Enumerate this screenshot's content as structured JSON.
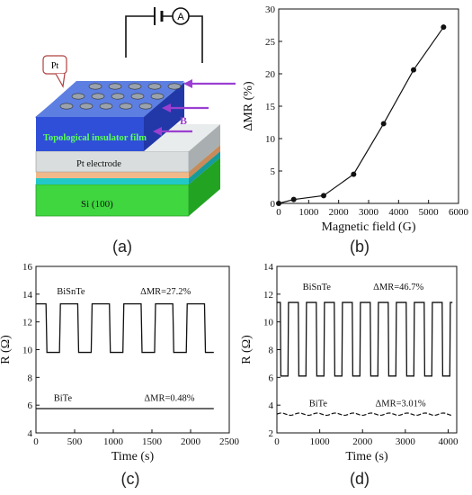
{
  "panels": {
    "a": {
      "label": "(a)",
      "texts": {
        "pt": "Pt",
        "b_field": "B",
        "film": "Topological insulator film",
        "electrode": "Pt electrode",
        "substrate": "Si (100)",
        "ammeter": "A"
      },
      "colors": {
        "film_top": "#6e8fe6",
        "film_front": "#2f4fd8",
        "film_side": "#2238a8",
        "arrow": "#9b3fd1",
        "electrode": "#d9dddd",
        "substrate": "#3fd63f"
      }
    },
    "b": {
      "label": "(b)"
    },
    "c": {
      "label": "(c)"
    },
    "d": {
      "label": "(d)"
    }
  },
  "chart_data": [
    {
      "id": "b",
      "type": "line",
      "xlabel": "Magnetic field (G)",
      "ylabel": "ΔMR (%)",
      "xlim": [
        0,
        6000
      ],
      "ylim": [
        0,
        30
      ],
      "xticks": [
        0,
        1000,
        2000,
        3000,
        4000,
        5000,
        6000
      ],
      "yticks": [
        0,
        5,
        10,
        15,
        20,
        25,
        30
      ],
      "series": [
        {
          "x": [
            0,
            500,
            1500,
            2500,
            3500,
            4500,
            5500
          ],
          "y": [
            0,
            0.6,
            1.2,
            4.5,
            12.3,
            20.6,
            27.2
          ]
        }
      ]
    },
    {
      "id": "c",
      "type": "line",
      "xlabel": "Time (s)",
      "ylabel": "R (Ω)",
      "xlim": [
        0,
        2500
      ],
      "ylim": [
        4,
        16
      ],
      "xticks": [
        0,
        500,
        1000,
        1500,
        2000,
        2500
      ],
      "yticks": [
        4,
        6,
        8,
        10,
        12,
        14,
        16
      ],
      "annotations": [
        {
          "text": "BiSnTe",
          "x": 270,
          "y": 14.0
        },
        {
          "text": "ΔMR=27.2%",
          "x": 1350,
          "y": 14.0
        },
        {
          "text": "BiTe",
          "x": 230,
          "y": 6.3
        },
        {
          "text": "ΔMR=0.48%",
          "x": 1400,
          "y": 6.3
        }
      ],
      "series": [
        {
          "name": "BiSnTe",
          "color": "#111111",
          "period": 410,
          "start": 130,
          "high": 13.3,
          "low": 9.8,
          "xmax": 2300
        },
        {
          "name": "BiTe",
          "color": "#111111",
          "flat": 5.75,
          "xmax": 2300
        }
      ]
    },
    {
      "id": "d",
      "type": "line",
      "xlabel": "Time (s)",
      "ylabel": "R (Ω)",
      "xlim": [
        0,
        4200
      ],
      "ylim": [
        2,
        14
      ],
      "xticks": [
        0,
        1000,
        2000,
        3000,
        4000
      ],
      "yticks": [
        2,
        4,
        6,
        8,
        10,
        12,
        14
      ],
      "annotations": [
        {
          "text": "BiSnTe",
          "x": 600,
          "y": 12.3
        },
        {
          "text": "ΔMR=46.7%",
          "x": 2250,
          "y": 12.3
        },
        {
          "text": "BiTe",
          "x": 750,
          "y": 3.9
        },
        {
          "text": "ΔMR=3.01%",
          "x": 2300,
          "y": 3.9
        }
      ],
      "series": [
        {
          "name": "BiSnTe",
          "color": "#111111",
          "period": 420,
          "start": 80,
          "high": 11.4,
          "low": 6.1,
          "xmax": 4100
        },
        {
          "name": "BiTe",
          "color": "#111111",
          "wave": 3.35,
          "amp": 0.08,
          "xmax": 4100
        }
      ]
    }
  ]
}
